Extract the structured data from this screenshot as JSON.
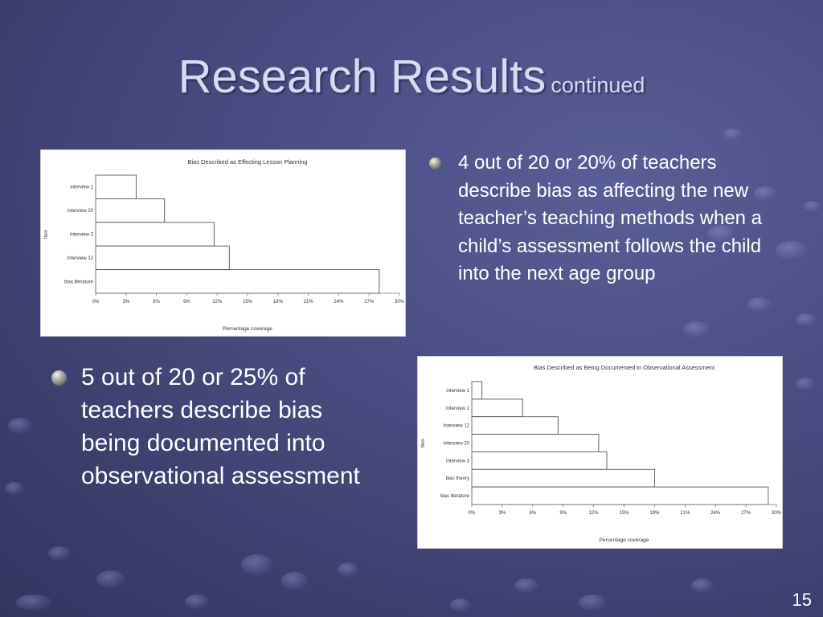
{
  "slide": {
    "title": "Research Results",
    "subtitle": "continued",
    "page_number": "15"
  },
  "bullets": {
    "right_text": "4 out of 20 or 20% of teachers describe bias as affecting the new teacher’s teaching methods when a child’s assessment follows the child into the next age group",
    "left_text": "5 out of 20 or 25% of teachers describe bias being documented into observational assessment"
  },
  "colors": {
    "background": "#454879",
    "title_text": "#d8d9f3",
    "bullet_text": "#ffffff",
    "chart_bar_fill": "#ffffff",
    "chart_bar_stroke": "#555555"
  },
  "chart_data": [
    {
      "type": "bar",
      "orientation": "horizontal",
      "title": "Bias Described as Effecting Lesson Planning",
      "xlabel": "Percentage coverage",
      "ylabel": "Item",
      "categories": [
        "interview 1",
        "interview 20",
        "Interview 3",
        "Interview 12",
        "bias literature"
      ],
      "values": [
        4,
        6.8,
        11.7,
        13.2,
        28
      ],
      "xlim": [
        0,
        30
      ],
      "xticks": [
        "0%",
        "3%",
        "6%",
        "9%",
        "12%",
        "15%",
        "18%",
        "21%",
        "24%",
        "27%",
        "30%"
      ],
      "grid": false
    },
    {
      "type": "bar",
      "orientation": "horizontal",
      "title": "Bias Described as Being Documented in Observational Assessment",
      "xlabel": "Percentage coverage",
      "ylabel": "Item",
      "categories": [
        "interview 1",
        "Interview 2",
        "Interview 12",
        "interview 20",
        "Interview 3",
        "bias theory",
        "bias literature"
      ],
      "values": [
        1,
        5,
        8.5,
        12.5,
        13.3,
        18,
        29.2
      ],
      "xlim": [
        0,
        30
      ],
      "xticks": [
        "0%",
        "3%",
        "6%",
        "9%",
        "12%",
        "15%",
        "18%",
        "21%",
        "24%",
        "27%",
        "30%"
      ],
      "grid": false
    }
  ]
}
